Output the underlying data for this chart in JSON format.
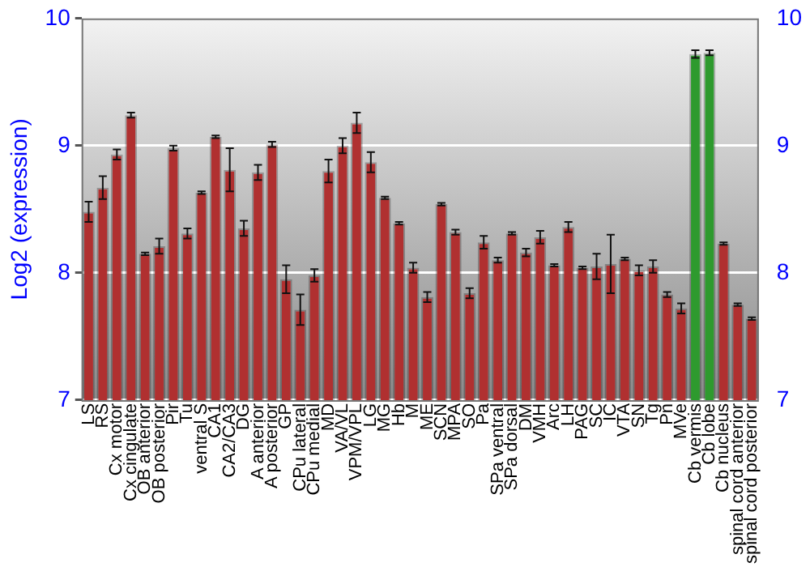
{
  "chart_data": {
    "type": "bar",
    "ylabel": "Log2 (expression)",
    "categories": [
      "LS",
      "RS",
      "Cx motor",
      "Cx cingulate",
      "OB anterior",
      "OB posterior",
      "Pir",
      "Tu",
      "ventral S",
      "CA1",
      "CA2/CA3",
      "DG",
      "A anterior",
      "A posterior",
      "GP",
      "CPu lateral",
      "CPu medial",
      "MD",
      "VA/VL",
      "VPM/VPL",
      "LG",
      "MG",
      "Hb",
      "M",
      "ME",
      "SCN",
      "MPA",
      "SO",
      "Pa",
      "SPa ventral",
      "SPa dorsal",
      "DM",
      "VMH",
      "Arc",
      "LH",
      "PAG",
      "SC",
      "IC",
      "VTA",
      "SN",
      "Tg",
      "Pn",
      "MVe",
      "Cb vermis",
      "Cb lobe",
      "Cb nucleus",
      "spinal cord anterior",
      "spinal cord posterior"
    ],
    "values": [
      8.48,
      8.67,
      8.93,
      9.24,
      8.15,
      8.21,
      8.98,
      8.31,
      8.63,
      9.07,
      8.81,
      8.35,
      8.79,
      9.01,
      7.95,
      7.71,
      7.98,
      8.8,
      9.0,
      9.18,
      8.87,
      8.59,
      8.39,
      8.04,
      7.81,
      8.54,
      8.32,
      7.84,
      8.24,
      8.1,
      8.31,
      8.16,
      8.28,
      8.06,
      8.36,
      8.04,
      8.05,
      8.07,
      8.11,
      8.02,
      8.05,
      7.83,
      7.72,
      9.72,
      9.73,
      8.23,
      7.75,
      7.64
    ],
    "errors": [
      0.08,
      0.09,
      0.04,
      0.02,
      0.01,
      0.06,
      0.02,
      0.04,
      0.01,
      0.01,
      0.17,
      0.06,
      0.06,
      0.02,
      0.11,
      0.12,
      0.05,
      0.09,
      0.06,
      0.08,
      0.08,
      0.01,
      0.01,
      0.04,
      0.04,
      0.01,
      0.02,
      0.04,
      0.05,
      0.02,
      0.01,
      0.03,
      0.05,
      0.01,
      0.04,
      0.01,
      0.1,
      0.23,
      0.01,
      0.04,
      0.05,
      0.02,
      0.04,
      0.03,
      0.02,
      0.01,
      0.01,
      0.01
    ],
    "colors": [
      "#b03030",
      "#b03030",
      "#b03030",
      "#b03030",
      "#b03030",
      "#b03030",
      "#b03030",
      "#b03030",
      "#b03030",
      "#b03030",
      "#b03030",
      "#b03030",
      "#b03030",
      "#b03030",
      "#b03030",
      "#b03030",
      "#b03030",
      "#b03030",
      "#b03030",
      "#b03030",
      "#b03030",
      "#b03030",
      "#b03030",
      "#b03030",
      "#b03030",
      "#b03030",
      "#b03030",
      "#b03030",
      "#b03030",
      "#b03030",
      "#b03030",
      "#b03030",
      "#b03030",
      "#b03030",
      "#b03030",
      "#b03030",
      "#b03030",
      "#b03030",
      "#b03030",
      "#b03030",
      "#b03030",
      "#b03030",
      "#b03030",
      "#2e9a2e",
      "#2e9a2e",
      "#b03030",
      "#b03030",
      "#b03030"
    ],
    "ylim": [
      7,
      10
    ],
    "yticks": [
      7,
      8,
      9,
      10
    ],
    "y2lim": [
      7,
      10
    ],
    "y2ticks": [
      7,
      8,
      9,
      10
    ],
    "grid": "y",
    "legend": false
  }
}
